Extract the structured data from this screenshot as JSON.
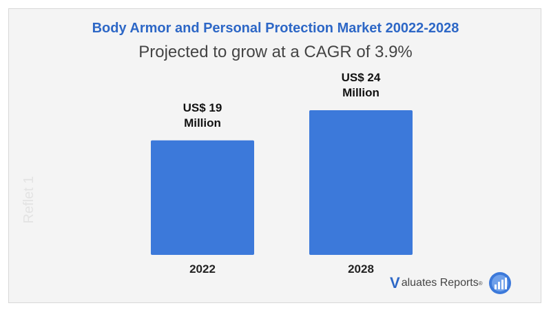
{
  "title": "Body Armor and Personal Protection Market 20022-2028",
  "subtitle": "Projected to grow at a CAGR of 3.9%",
  "watermark": "Reflet 1",
  "logo": {
    "v": "V",
    "text": "aluates Reports",
    "reg": "®",
    "icon": "bar-chart-globe-icon"
  },
  "colors": {
    "bar": "#3c79da",
    "title": "#2d67c6",
    "background": "#f4f4f4"
  },
  "chart_data": {
    "type": "bar",
    "categories": [
      "2022",
      "2028"
    ],
    "values": [
      19,
      24
    ],
    "data_labels": [
      [
        "US$ 19",
        "Million"
      ],
      [
        "US$ 24",
        "Million"
      ]
    ],
    "title": "Body Armor and Personal Protection Market 20022-2028",
    "subtitle": "Projected to grow at a CAGR of 3.9%",
    "unit": "US$ Million",
    "ylim": [
      0,
      24
    ],
    "grid": false,
    "legend": "none"
  }
}
